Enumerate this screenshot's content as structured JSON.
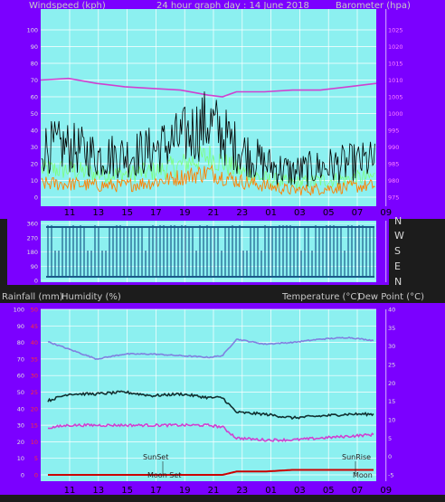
{
  "header": {
    "left_label": "Windspeed (kph)",
    "center_label": "24 hour graph day : 14 June 2018",
    "right_label": "Barometer (hpa)"
  },
  "middle": {
    "compass_labels": [
      "N",
      "W",
      "S",
      "E",
      "N"
    ]
  },
  "lower_header": {
    "rain_label": "Rainfall (mm)",
    "humidity_label": "Humidity (%)",
    "temp_label": "Temperature (°C)",
    "dew_label": "Dew Point (°C)"
  },
  "annotations": {
    "sunset": "SunSet",
    "sunrise": "SunRise",
    "moonset": "Moon Set",
    "moonrise": "Moon"
  },
  "colors": {
    "panel_bg": "#8cf0f0",
    "frame_bg": "#7b00ff",
    "grid": "#ffffff",
    "wind_gust": "#000000",
    "wind_avg": "#ff8000",
    "wind_mid": "#7cff7c",
    "barometer": "#d040d0",
    "direction": "#1a5a8a",
    "humidity": "#8080e0",
    "temperature": "#103030",
    "dew_point": "#d040d0",
    "rainfall": "#cc0000"
  },
  "chart_data": [
    {
      "type": "line",
      "x_tick_labels": [
        "11",
        "13",
        "15",
        "17",
        "19",
        "21",
        "23",
        "01",
        "03",
        "05",
        "07",
        "09"
      ],
      "y_left_ticks": [
        "0",
        "10",
        "20",
        "30",
        "40",
        "50",
        "60",
        "70",
        "80",
        "90",
        "100"
      ],
      "y_right_ticks": [
        "975",
        "980",
        "985",
        "990",
        "995",
        "1000",
        "1005",
        "1010",
        "1015",
        "1020",
        "1025"
      ],
      "ylim_left": [
        0,
        100
      ],
      "ylim_right": [
        975,
        1025
      ],
      "series": [
        {
          "axis": "right",
          "x": [
            "09",
            "11",
            "13",
            "15",
            "17",
            "19",
            "21",
            "22",
            "23",
            "01",
            "03",
            "05",
            "07",
            "09"
          ],
          "values": [
            1010,
            1010.5,
            1009,
            1008,
            1007.5,
            1007,
            1005.5,
            1005,
            1006.5,
            1006.5,
            1007,
            1007,
            1008,
            1009
          ]
        },
        {
          "axis": "left",
          "x": [
            "09",
            "11",
            "13",
            "15",
            "17",
            "19",
            "21",
            "23",
            "01",
            "03",
            "05",
            "07",
            "09"
          ],
          "values": [
            30,
            30,
            25,
            25,
            28,
            35,
            45,
            30,
            20,
            15,
            18,
            20,
            22
          ]
        },
        {
          "axis": "left",
          "x": [
            "09",
            "11",
            "13",
            "15",
            "17",
            "19",
            "21",
            "23",
            "01",
            "03",
            "05",
            "07",
            "09"
          ],
          "values": [
            8,
            8,
            7,
            7,
            9,
            12,
            15,
            10,
            7,
            4,
            5,
            6,
            7
          ]
        }
      ]
    },
    {
      "type": "scatter",
      "y_tick_labels": [
        "360",
        "270",
        "180",
        "90",
        "0"
      ],
      "ylim": [
        0,
        360
      ]
    },
    {
      "type": "line",
      "x_tick_labels": [
        "11",
        "13",
        "15",
        "17",
        "19",
        "21",
        "23",
        "01",
        "03",
        "05",
        "07",
        "09"
      ],
      "y_left_ticks": [
        "0",
        "10",
        "20",
        "30",
        "40",
        "50",
        "60",
        "70",
        "80",
        "90",
        "100"
      ],
      "y_rain_ticks": [
        "0",
        "5",
        "10",
        "15",
        "20",
        "25",
        "30",
        "35",
        "40",
        "45",
        "50"
      ],
      "y_right_ticks": [
        "-5",
        "0",
        "5",
        "10",
        "15",
        "20",
        "25",
        "30",
        "35",
        "40"
      ],
      "ylim_humidity": [
        0,
        100
      ],
      "ylim_rain": [
        0,
        50
      ],
      "ylim_temp": [
        -5,
        40
      ],
      "series": [
        {
          "axis": "humidity",
          "x": [
            "09",
            "11",
            "13",
            "15",
            "17",
            "19",
            "21",
            "22",
            "23",
            "01",
            "03",
            "05",
            "07",
            "09"
          ],
          "values": [
            82,
            76,
            70,
            73,
            73,
            72,
            71,
            72,
            82,
            79,
            80,
            82,
            83,
            81
          ]
        },
        {
          "axis": "temp",
          "x": [
            "09",
            "11",
            "13",
            "15",
            "17",
            "19",
            "21",
            "22",
            "23",
            "01",
            "03",
            "05",
            "07",
            "09"
          ],
          "values": [
            14.5,
            17,
            17,
            17.5,
            16.5,
            17,
            16,
            16,
            12,
            11.5,
            10.5,
            11,
            11.5,
            11.5
          ]
        },
        {
          "axis": "temp",
          "x": [
            "09",
            "11",
            "13",
            "15",
            "17",
            "19",
            "21",
            "22",
            "23",
            "01",
            "03",
            "05",
            "07",
            "09"
          ],
          "values": [
            7.5,
            8.5,
            8.5,
            8.5,
            8.5,
            8.5,
            8.5,
            8,
            5,
            4.5,
            4.5,
            5,
            5.5,
            6
          ]
        },
        {
          "axis": "rain",
          "x": [
            "09",
            "11",
            "13",
            "15",
            "17",
            "19",
            "21",
            "22",
            "23",
            "01",
            "03",
            "05",
            "07",
            "09"
          ],
          "values": [
            0,
            0,
            0,
            0,
            0,
            0,
            0,
            0,
            1.0,
            1.0,
            1.5,
            1.5,
            1.5,
            1.5
          ]
        }
      ]
    }
  ]
}
